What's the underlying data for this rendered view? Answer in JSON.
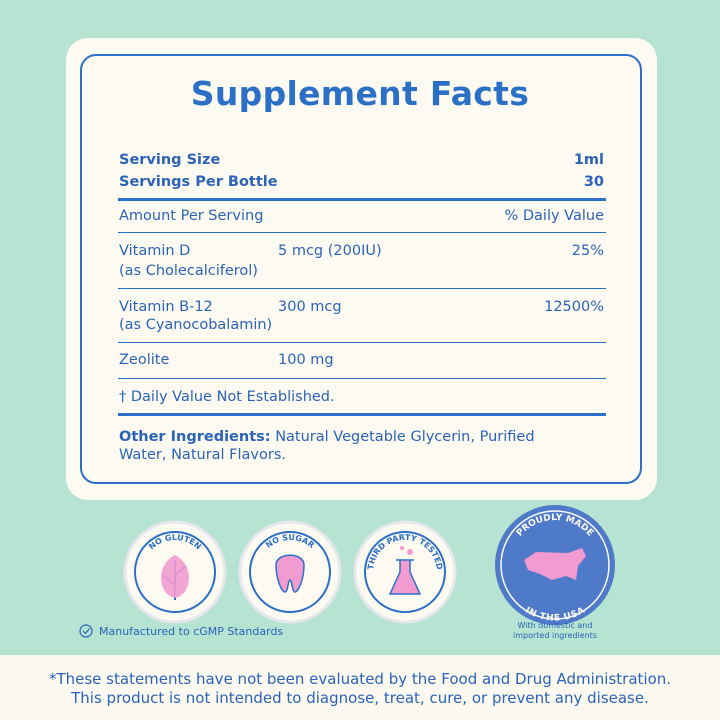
{
  "title": "Supplement Facts",
  "serving": [
    {
      "label": "Serving Size",
      "value": "1ml"
    },
    {
      "label": "Servings Per Bottle",
      "value": "30"
    }
  ],
  "columns": {
    "amount": "Amount Per Serving",
    "daily": "% Daily Value"
  },
  "nutrients": [
    {
      "name": "Vitamin D",
      "source": "(as Cholecalciferol)",
      "amount": "5 mcg (200IU)",
      "daily_value": "25%"
    },
    {
      "name": "Vitamin B-12",
      "source": "(as Cyanocobalamin)",
      "amount": "300 mcg",
      "daily_value": "12500%"
    },
    {
      "name": "Zeolite",
      "amount": "100 mg"
    }
  ],
  "note": "† Daily Value Not Established.",
  "other_ingredients": {
    "label": "Other Ingredients:",
    "text": "Natural Vegetable Glycerin, Purified Water, Natural Flavors."
  },
  "badges": [
    "NO GLUTEN",
    "NO SUGAR",
    "THIRD PARTY TESTED"
  ],
  "usa_badge": {
    "top": "PROUDLY MADE",
    "bottom": "IN THE USA",
    "caption": [
      "With domestic and",
      "imported ingredients"
    ]
  },
  "cgmp": "Manufactured to cGMP Standards",
  "disclaimer": [
    "*These statements have not been evaluated by the Food and Drug Administration.",
    "This product is not intended to diagnose, treat, cure, or prevent any disease."
  ]
}
